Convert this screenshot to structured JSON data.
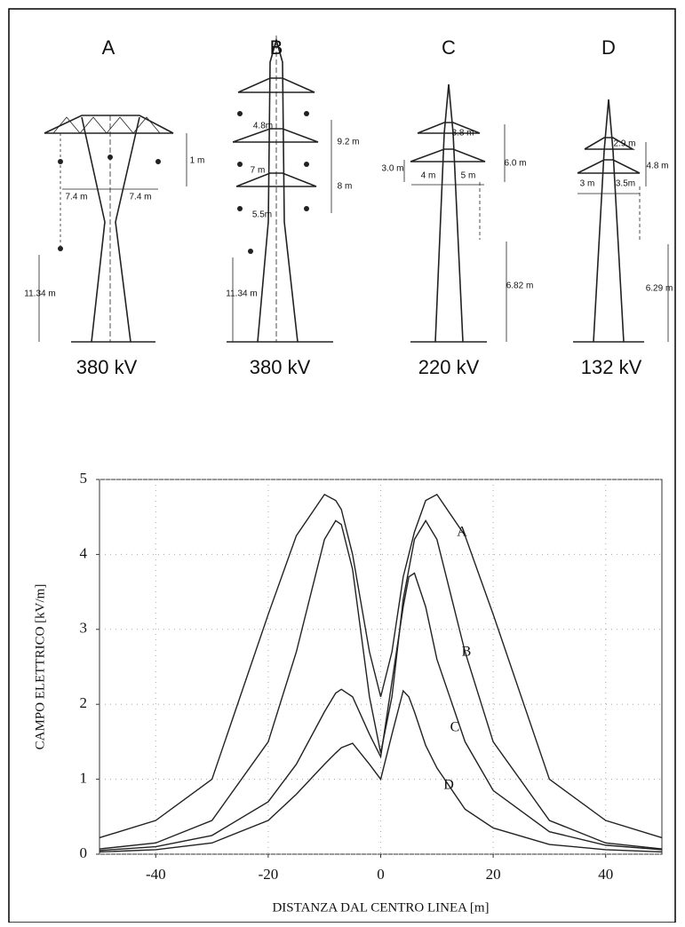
{
  "towers": [
    {
      "label": "A",
      "voltage": "380 kV",
      "dims": [
        "1 m",
        "7.4 m",
        "7.4 m",
        "11.34 m"
      ]
    },
    {
      "label": "B",
      "voltage": "380 kV",
      "dims": [
        "9.2 m",
        "4.8m",
        "7 m",
        "8 m",
        "5.5m",
        "11.34 m"
      ]
    },
    {
      "label": "C",
      "voltage": "220 kV",
      "dims": [
        "3.8 m",
        "6.0 m",
        "3.0 m",
        "4 m",
        "5 m",
        "6.82 m"
      ]
    },
    {
      "label": "D",
      "voltage": "132 kV",
      "dims": [
        "2.9 m",
        "4.8 m",
        "3 m",
        "3.5m",
        "6.29 m"
      ]
    }
  ],
  "chart_data": {
    "type": "line",
    "x_label": "DISTANZA DAL CENTRO LINEA [m]",
    "y_label": "CAMPO ELETTRICO  [kV/m]",
    "x": [
      -50,
      -40,
      -30,
      -20,
      -15,
      -10,
      -8,
      -7,
      -5,
      -2,
      0,
      2,
      4,
      5,
      6,
      8,
      10,
      15,
      20,
      30,
      40,
      50
    ],
    "series": [
      {
        "name": "A",
        "color": "#222222",
        "values": [
          0.22,
          0.45,
          1.0,
          3.2,
          4.25,
          4.8,
          4.72,
          4.6,
          4.0,
          2.7,
          2.1,
          2.7,
          3.7,
          4.0,
          4.3,
          4.72,
          4.8,
          4.25,
          3.2,
          1.0,
          0.45,
          0.22
        ]
      },
      {
        "name": "B",
        "color": "#222222",
        "values": [
          0.07,
          0.15,
          0.45,
          1.5,
          2.7,
          4.2,
          4.45,
          4.4,
          3.8,
          2.1,
          1.35,
          2.1,
          3.4,
          3.8,
          4.2,
          4.45,
          4.2,
          2.7,
          1.5,
          0.45,
          0.15,
          0.07
        ]
      },
      {
        "name": "C",
        "color": "#222222",
        "values": [
          0.05,
          0.1,
          0.25,
          0.7,
          1.2,
          1.9,
          2.15,
          2.2,
          2.1,
          1.6,
          1.3,
          2.3,
          3.3,
          3.7,
          3.75,
          3.3,
          2.6,
          1.5,
          0.85,
          0.3,
          0.12,
          0.06
        ]
      },
      {
        "name": "D",
        "color": "#222222",
        "values": [
          0.03,
          0.06,
          0.15,
          0.45,
          0.8,
          1.2,
          1.35,
          1.42,
          1.48,
          1.2,
          1.0,
          1.6,
          2.18,
          2.1,
          1.9,
          1.45,
          1.15,
          0.6,
          0.35,
          0.13,
          0.06,
          0.03
        ]
      }
    ],
    "xlim": [
      -50,
      50
    ],
    "ylim": [
      0,
      5
    ],
    "xticks": [
      -40,
      -20,
      0,
      20,
      40
    ],
    "yticks": [
      0,
      1,
      2,
      3,
      4,
      5
    ],
    "grid": true
  }
}
